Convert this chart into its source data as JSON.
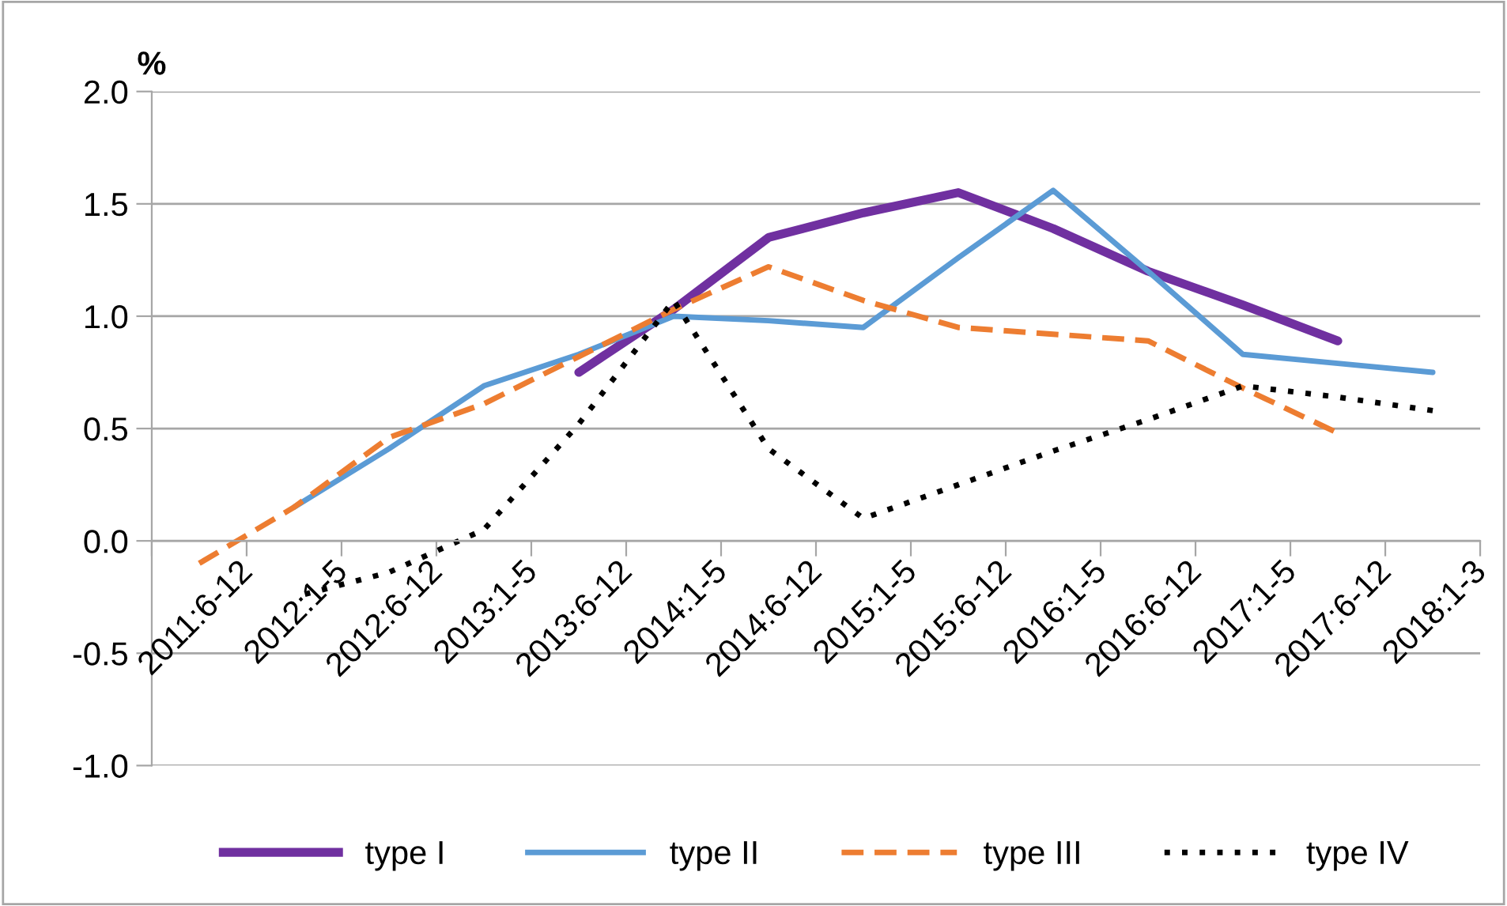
{
  "chart_data": {
    "type": "line",
    "ylabel": "%",
    "categories": [
      "2011:6-12",
      "2012:1-5",
      "2012:6-12",
      "2013:1-5",
      "2013:6-12",
      "2014:1-5",
      "2014:6-12",
      "2015:1-5",
      "2015:6-12",
      "2016:1-5",
      "2016:6-12",
      "2017:1-5",
      "2017:6-12",
      "2018:1-3"
    ],
    "series": [
      {
        "name": "type I",
        "color": "#7030a0",
        "line_style": "solid",
        "values": [
          null,
          null,
          null,
          null,
          0.75,
          1.03,
          1.35,
          1.46,
          1.55,
          1.39,
          1.2,
          1.05,
          0.89,
          null
        ]
      },
      {
        "name": "type II",
        "color": "#5b9bd5",
        "line_style": "solid",
        "values": [
          null,
          0.15,
          0.41,
          0.69,
          0.83,
          1.0,
          0.98,
          0.95,
          1.26,
          1.56,
          1.2,
          0.83,
          0.79,
          0.75
        ]
      },
      {
        "name": "type III",
        "color": "#ed7d31",
        "line_style": "dashed",
        "values": [
          -0.1,
          0.15,
          0.46,
          0.61,
          0.82,
          1.03,
          1.22,
          1.07,
          0.95,
          0.92,
          0.89,
          0.68,
          0.48,
          null
        ]
      },
      {
        "name": "type IV",
        "color": "#000000",
        "line_style": "dotted",
        "values": [
          null,
          -0.25,
          -0.14,
          0.05,
          0.52,
          1.07,
          0.41,
          0.1,
          0.25,
          0.4,
          0.54,
          0.69,
          0.64,
          0.58
        ]
      }
    ],
    "ylim": [
      -1.0,
      2.0
    ],
    "yticks": [
      {
        "value": -1.0,
        "label": "-1.0"
      },
      {
        "value": -0.5,
        "label": "-0.5"
      },
      {
        "value": 0.0,
        "label": "0.0"
      },
      {
        "value": 0.5,
        "label": "0.5"
      },
      {
        "value": 1.0,
        "label": "1.0"
      },
      {
        "value": 1.5,
        "label": "1.5"
      },
      {
        "value": 2.0,
        "label": "2.0"
      }
    ],
    "grid": "y",
    "legend": "bottom",
    "marker": "none"
  }
}
